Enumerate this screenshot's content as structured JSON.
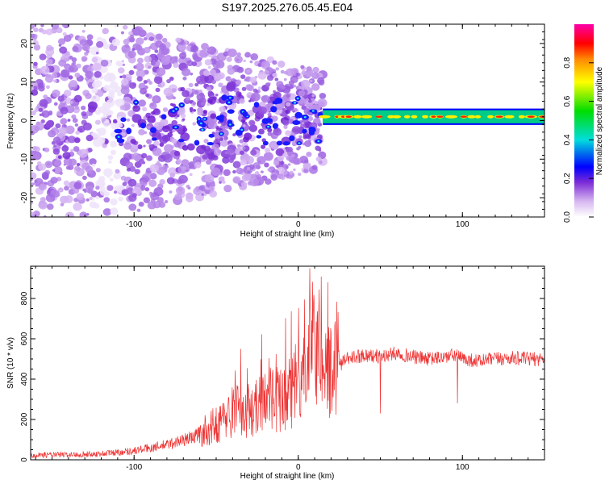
{
  "title": "S197.2025.276.05.45.E04",
  "chart_data": [
    {
      "type": "heatmap",
      "name": "spectrogram",
      "xlabel": "Height of straight line (km)",
      "ylabel": "Frequency (Hz)",
      "xlim": [
        -163,
        150
      ],
      "ylim": [
        -25,
        25
      ],
      "xticks": [
        -100,
        0,
        100
      ],
      "yticks": [
        -20,
        -10,
        0,
        10,
        20
      ],
      "noise_region": {
        "x": [
          -163,
          15
        ],
        "freq_spread_hz": [
          -25,
          25
        ]
      },
      "carrier_region": {
        "x": [
          15,
          150
        ],
        "freq_center_hz": [
          0.5,
          1.5
        ]
      },
      "colorbar": {
        "label": "Normalized spectral amplitude",
        "range": [
          0,
          1
        ],
        "ticks": [
          0.0,
          0.2,
          0.4,
          0.6,
          0.8
        ]
      }
    },
    {
      "type": "line",
      "name": "snr",
      "xlabel": "Height of straight line (km)",
      "ylabel": "SNR (10 * v/v)",
      "xlim": [
        -163,
        150
      ],
      "ylim": [
        0,
        960
      ],
      "xticks": [
        -100,
        0,
        100
      ],
      "yticks": [
        0,
        200,
        400,
        600,
        800
      ],
      "color": "#ee3333",
      "series": [
        {
          "name": "SNR",
          "x": [
            -163,
            -140,
            -120,
            -100,
            -80,
            -65,
            -55,
            -45,
            -38,
            -30,
            -20,
            -10,
            0,
            5,
            10,
            15,
            20,
            25,
            30,
            40,
            50,
            60,
            70,
            80,
            90,
            96,
            100,
            110,
            120,
            130,
            140,
            150
          ],
          "values": [
            25,
            25,
            30,
            45,
            75,
            110,
            150,
            200,
            260,
            230,
            290,
            300,
            360,
            420,
            560,
            480,
            430,
            470,
            500,
            520,
            510,
            530,
            510,
            500,
            510,
            520,
            500,
            490,
            500,
            505,
            500,
            500
          ]
        }
      ],
      "peaks": [
        {
          "x": 7,
          "y": 950
        },
        {
          "x": 18,
          "y": 880
        },
        {
          "x": -35,
          "y": 550
        },
        {
          "x": 97,
          "y": 280
        },
        {
          "x": 50,
          "y": 230
        }
      ]
    }
  ]
}
